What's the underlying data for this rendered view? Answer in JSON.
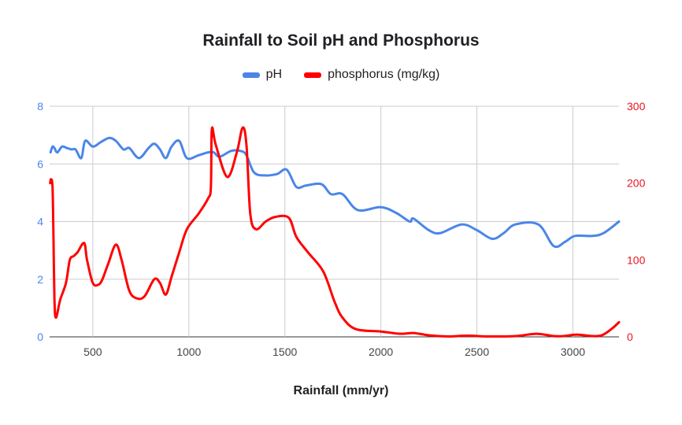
{
  "chart_data": {
    "type": "line",
    "title": "Rainfall to Soil pH and Phosphorus",
    "xlabel": "Rainfall (mm/yr)",
    "ylabel_left": "",
    "ylabel_right": "",
    "xlim": [
      275,
      3240
    ],
    "xticks": [
      500,
      1000,
      1500,
      2000,
      2500,
      3000
    ],
    "ylim_left": [
      0,
      8
    ],
    "yticks_left": [
      0,
      2,
      4,
      6,
      8
    ],
    "ylim_right": [
      0,
      300
    ],
    "yticks_right": [
      0,
      100,
      200,
      300
    ],
    "grid": true,
    "legend_position": "top",
    "series": [
      {
        "name": "pH",
        "axis": "left",
        "color": "#4A86E8",
        "points": [
          [
            280,
            6.4
          ],
          [
            290,
            6.6
          ],
          [
            300,
            6.55
          ],
          [
            315,
            6.4
          ],
          [
            340,
            6.6
          ],
          [
            365,
            6.55
          ],
          [
            390,
            6.5
          ],
          [
            410,
            6.5
          ],
          [
            440,
            6.2
          ],
          [
            460,
            6.8
          ],
          [
            500,
            6.6
          ],
          [
            540,
            6.75
          ],
          [
            585,
            6.9
          ],
          [
            620,
            6.8
          ],
          [
            660,
            6.5
          ],
          [
            690,
            6.55
          ],
          [
            740,
            6.2
          ],
          [
            790,
            6.55
          ],
          [
            820,
            6.7
          ],
          [
            850,
            6.5
          ],
          [
            880,
            6.2
          ],
          [
            910,
            6.6
          ],
          [
            950,
            6.8
          ],
          [
            990,
            6.2
          ],
          [
            1050,
            6.3
          ],
          [
            1100,
            6.4
          ],
          [
            1130,
            6.4
          ],
          [
            1160,
            6.25
          ],
          [
            1220,
            6.45
          ],
          [
            1270,
            6.45
          ],
          [
            1300,
            6.3
          ],
          [
            1340,
            5.7
          ],
          [
            1400,
            5.6
          ],
          [
            1460,
            5.65
          ],
          [
            1510,
            5.8
          ],
          [
            1560,
            5.2
          ],
          [
            1610,
            5.25
          ],
          [
            1690,
            5.3
          ],
          [
            1740,
            4.95
          ],
          [
            1800,
            4.95
          ],
          [
            1880,
            4.4
          ],
          [
            2000,
            4.5
          ],
          [
            2080,
            4.3
          ],
          [
            2150,
            4.0
          ],
          [
            2170,
            4.1
          ],
          [
            2250,
            3.7
          ],
          [
            2310,
            3.6
          ],
          [
            2420,
            3.9
          ],
          [
            2500,
            3.7
          ],
          [
            2580,
            3.4
          ],
          [
            2640,
            3.6
          ],
          [
            2700,
            3.9
          ],
          [
            2820,
            3.9
          ],
          [
            2900,
            3.15
          ],
          [
            2960,
            3.3
          ],
          [
            3010,
            3.5
          ],
          [
            3100,
            3.5
          ],
          [
            3160,
            3.6
          ],
          [
            3240,
            4.0
          ]
        ]
      },
      {
        "name": "phosphorus (mg/kg)",
        "axis": "right",
        "color": "#FF0000",
        "points": [
          [
            278,
            200
          ],
          [
            282,
            205
          ],
          [
            290,
            195
          ],
          [
            295,
            130
          ],
          [
            300,
            50
          ],
          [
            308,
            25
          ],
          [
            330,
            48
          ],
          [
            360,
            70
          ],
          [
            380,
            100
          ],
          [
            400,
            105
          ],
          [
            420,
            110
          ],
          [
            455,
            122
          ],
          [
            470,
            100
          ],
          [
            500,
            70
          ],
          [
            530,
            68
          ],
          [
            550,
            75
          ],
          [
            580,
            95
          ],
          [
            620,
            120
          ],
          [
            650,
            100
          ],
          [
            690,
            60
          ],
          [
            730,
            50
          ],
          [
            770,
            53
          ],
          [
            820,
            75
          ],
          [
            850,
            70
          ],
          [
            880,
            55
          ],
          [
            910,
            78
          ],
          [
            950,
            110
          ],
          [
            990,
            140
          ],
          [
            1050,
            160
          ],
          [
            1100,
            180
          ],
          [
            1115,
            195
          ],
          [
            1120,
            270
          ],
          [
            1140,
            250
          ],
          [
            1200,
            208
          ],
          [
            1250,
            240
          ],
          [
            1280,
            272
          ],
          [
            1300,
            250
          ],
          [
            1320,
            160
          ],
          [
            1350,
            140
          ],
          [
            1400,
            150
          ],
          [
            1450,
            156
          ],
          [
            1520,
            155
          ],
          [
            1560,
            130
          ],
          [
            1620,
            110
          ],
          [
            1700,
            85
          ],
          [
            1760,
            45
          ],
          [
            1800,
            25
          ],
          [
            1870,
            10
          ],
          [
            2000,
            7
          ],
          [
            2100,
            4
          ],
          [
            2170,
            5
          ],
          [
            2250,
            2
          ],
          [
            2350,
            0.5
          ],
          [
            2450,
            1.5
          ],
          [
            2560,
            0.5
          ],
          [
            2700,
            1
          ],
          [
            2810,
            4
          ],
          [
            2900,
            1
          ],
          [
            2950,
            1
          ],
          [
            3020,
            3
          ],
          [
            3100,
            1
          ],
          [
            3150,
            2
          ],
          [
            3200,
            10
          ],
          [
            3240,
            19
          ]
        ]
      }
    ]
  }
}
